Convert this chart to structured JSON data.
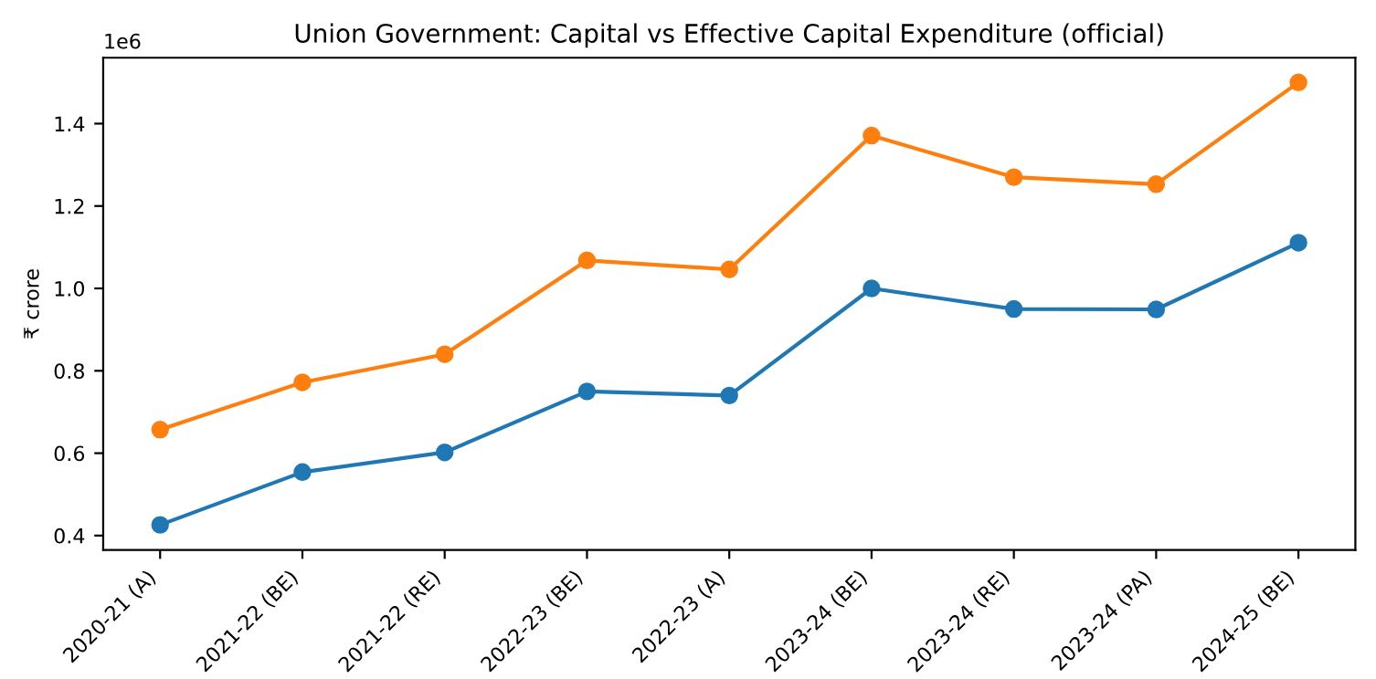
{
  "chart_data": {
    "type": "line",
    "title": "Union Government: Capital vs Effective Capital Expenditure (official)",
    "ylabel": "₹ crore",
    "categories": [
      "2020-21 (A)",
      "2021-22 (BE)",
      "2021-22 (RE)",
      "2022-23 (BE)",
      "2022-23 (A)",
      "2023-24 (BE)",
      "2023-24 (RE)",
      "2023-24 (PA)",
      "2024-25 (BE)"
    ],
    "series": [
      {
        "color": "#1f77b4",
        "values": [
          0.426,
          0.554,
          0.602,
          0.75,
          0.74,
          1.0,
          0.95,
          0.949,
          1.111
        ]
      },
      {
        "color": "#ff7f0e",
        "values": [
          0.657,
          0.772,
          0.84,
          1.068,
          1.046,
          1.371,
          1.27,
          1.253,
          1.5
        ]
      }
    ],
    "ylim": [
      0.365,
      1.56
    ],
    "yticks": [
      {
        "value": 0.4,
        "label": "0.4"
      },
      {
        "value": 0.6,
        "label": "0.6"
      },
      {
        "value": 0.8,
        "label": "0.8"
      },
      {
        "value": 1.0,
        "label": "1.0"
      },
      {
        "value": 1.2,
        "label": "1.2"
      },
      {
        "value": 1.4,
        "label": "1.4"
      }
    ],
    "annotations": [
      "1e6"
    ],
    "marker": "circle",
    "line_style": "solid",
    "grid": false,
    "legend": false
  }
}
